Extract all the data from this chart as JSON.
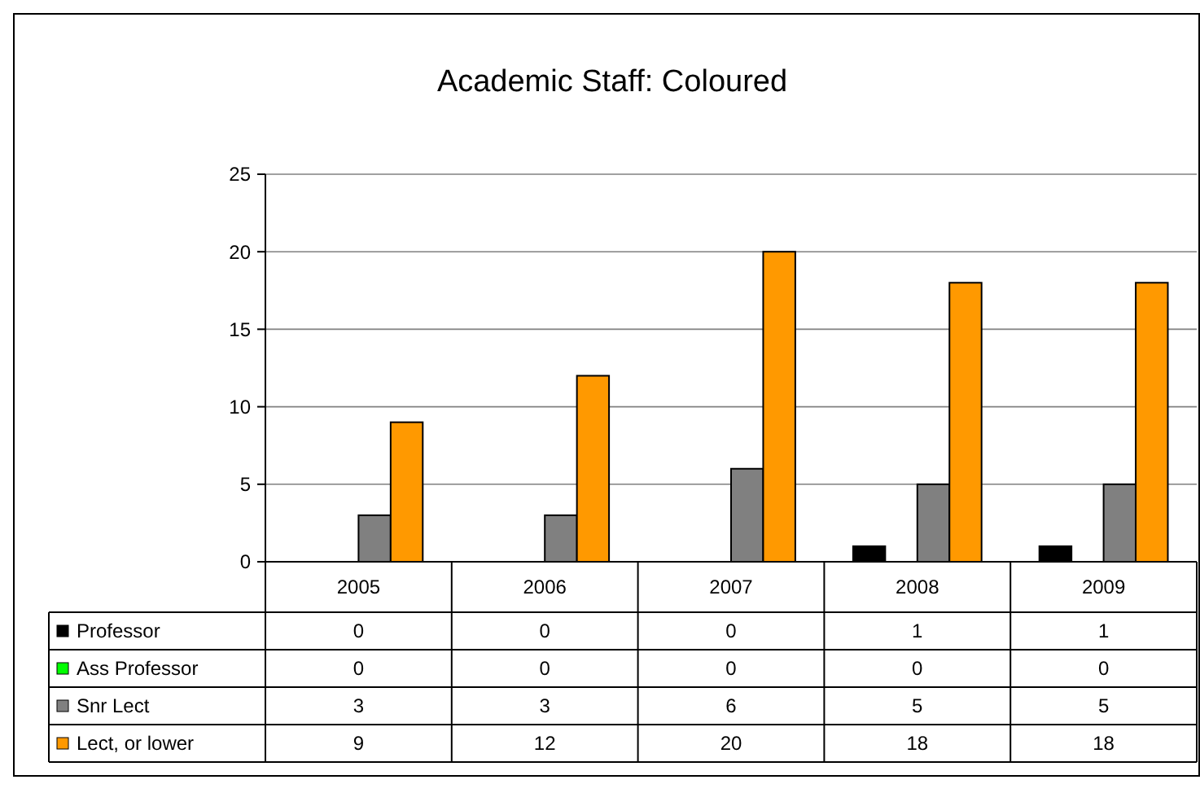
{
  "chart_data": {
    "type": "bar",
    "title": "Academic Staff: Coloured",
    "categories": [
      "2005",
      "2006",
      "2007",
      "2008",
      "2009"
    ],
    "series": [
      {
        "name": "Professor",
        "color": "#000000",
        "values": [
          0,
          0,
          0,
          1,
          1
        ]
      },
      {
        "name": "Ass Professor",
        "color": "#00ff00",
        "values": [
          0,
          0,
          0,
          0,
          0
        ]
      },
      {
        "name": "Snr Lect",
        "color": "#808080",
        "values": [
          3,
          3,
          6,
          5,
          5
        ]
      },
      {
        "name": "Lect, or lower",
        "color": "#ff9900",
        "values": [
          9,
          12,
          20,
          18,
          18
        ]
      }
    ],
    "ylim": [
      0,
      25
    ],
    "yticks": [
      0,
      5,
      10,
      15,
      20,
      25
    ],
    "grid": "y",
    "legend": "bottom",
    "data_labels": true
  }
}
